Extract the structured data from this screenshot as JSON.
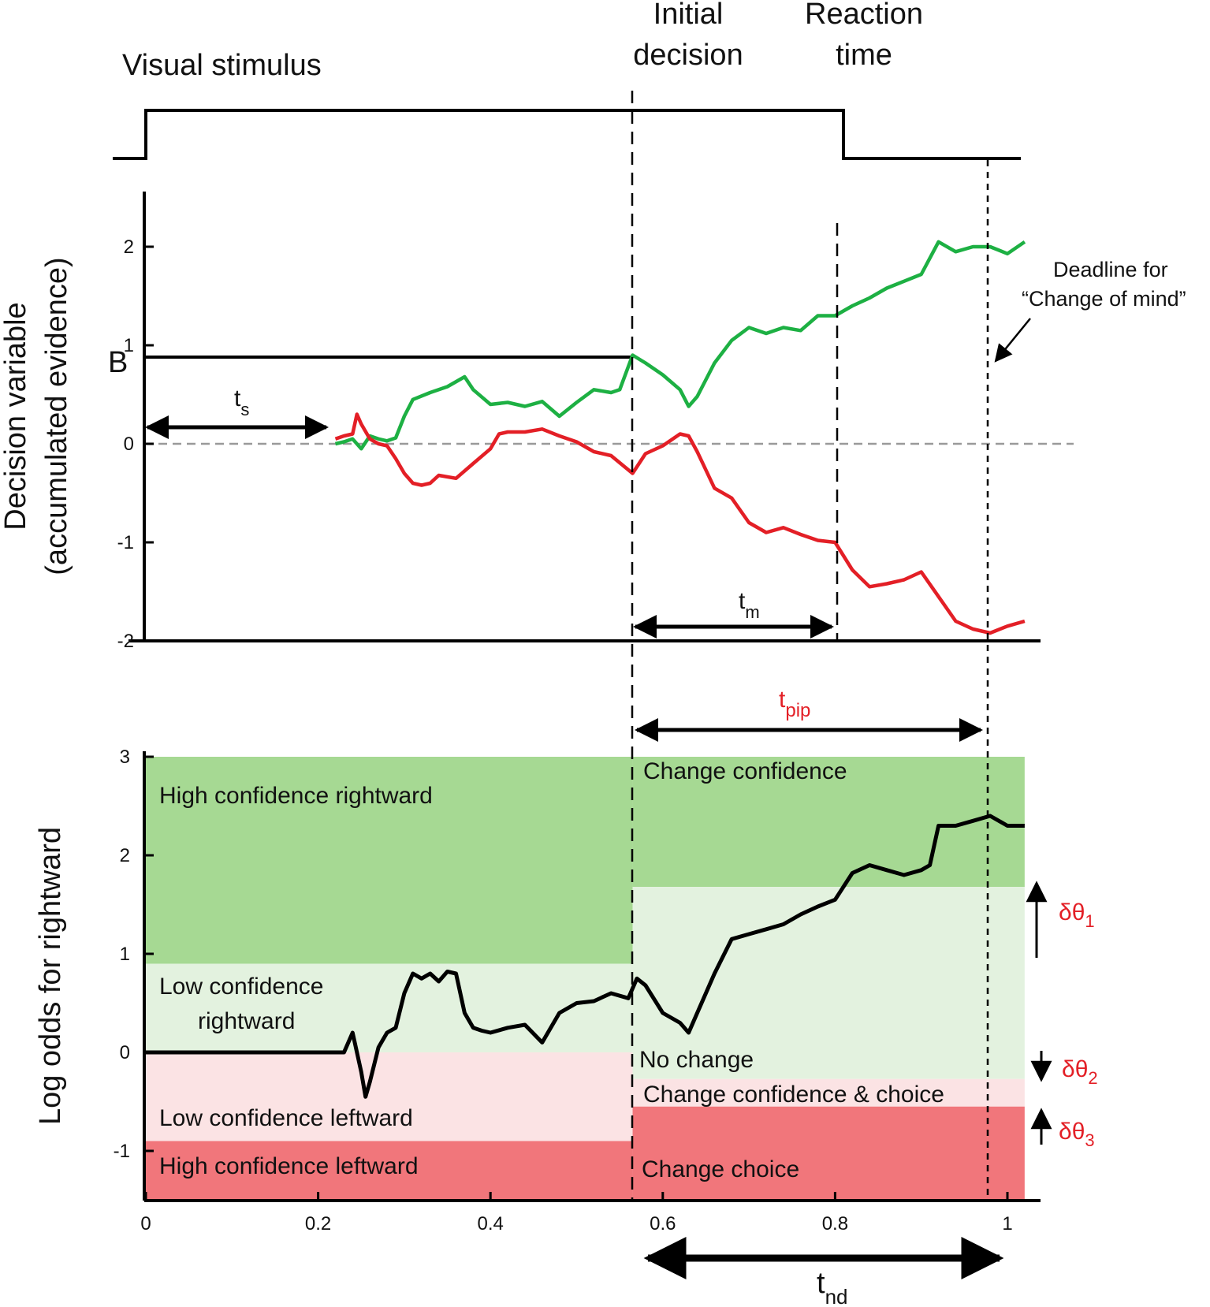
{
  "header": {
    "stimulus_label": "Visual stimulus",
    "initial_decision_line1": "Initial",
    "initial_decision_line2": "decision",
    "reaction_time_line1": "Reaction",
    "reaction_time_line2": "time"
  },
  "annotations": {
    "bound_label": "B",
    "ts_main": "t",
    "ts_sub": "s",
    "tm_main": "t",
    "tm_sub": "m",
    "tpip_main": "t",
    "tpip_sub": "pip",
    "tnd_main": "t",
    "tnd_sub": "nd",
    "deadline_line1": "Deadline for",
    "deadline_line2": "“Change of mind”",
    "dtheta1_main": "δθ",
    "dtheta1_sub": "1",
    "dtheta2_main": "δθ",
    "dtheta2_sub": "2",
    "dtheta3_main": "δθ",
    "dtheta3_sub": "3"
  },
  "regions": {
    "high_right": "High confidence rightward",
    "low_right_line1": "Low confidence",
    "low_right_line2": "rightward",
    "low_left": "Low confidence leftward",
    "high_left": "High confidence leftward",
    "change_confidence": "Change confidence",
    "no_change": "No change",
    "change_conf_choice": "Change confidence & choice",
    "change_choice": "Change choice"
  },
  "colors": {
    "green_dark": "#a6d993",
    "green_light": "#e3f2df",
    "red_light": "#fbe3e4",
    "red_dark": "#f1767b",
    "trace_green": "#1db043",
    "trace_red": "#e31f26",
    "trace_black": "#000000",
    "zero_line": "#9a9a9a",
    "annotation_red": "#e31f26"
  },
  "chart_data": [
    {
      "type": "line",
      "ylabel_line1": "Decision variable",
      "ylabel_line2": "(accumulated evidence)",
      "ylim": [
        -2,
        2.5
      ],
      "yticks": [
        "-2",
        "-1",
        "0",
        "1",
        "2"
      ],
      "bound": 0.87,
      "events": {
        "initial_decision": 0.565,
        "reaction_time": 0.8,
        "deadline": 0.98
      },
      "series": [
        {
          "x": [
            0.22,
            0.23,
            0.24,
            0.25,
            0.26,
            0.27,
            0.28,
            0.29,
            0.3,
            0.31,
            0.33,
            0.35,
            0.37,
            0.38,
            0.4,
            0.42,
            0.44,
            0.46,
            0.48,
            0.5,
            0.52,
            0.54,
            0.55,
            0.565,
            0.58,
            0.6,
            0.62,
            0.63,
            0.64,
            0.66,
            0.68,
            0.7,
            0.72,
            0.74,
            0.76,
            0.78,
            0.8,
            0.82,
            0.84,
            0.86,
            0.88,
            0.9,
            0.92,
            0.94,
            0.96,
            0.98,
            1.0,
            1.02
          ],
          "values": [
            0.0,
            0.02,
            0.05,
            -0.05,
            0.08,
            0.05,
            0.03,
            0.06,
            0.28,
            0.45,
            0.52,
            0.58,
            0.68,
            0.55,
            0.4,
            0.42,
            0.38,
            0.43,
            0.28,
            0.42,
            0.55,
            0.52,
            0.55,
            0.9,
            0.82,
            0.7,
            0.55,
            0.38,
            0.48,
            0.82,
            1.05,
            1.18,
            1.12,
            1.18,
            1.15,
            1.3,
            1.3,
            1.4,
            1.48,
            1.58,
            1.65,
            1.72,
            2.05,
            1.95,
            2.0,
            2.0,
            1.93,
            2.05
          ]
        },
        {
          "x": [
            0.22,
            0.23,
            0.24,
            0.245,
            0.25,
            0.26,
            0.27,
            0.28,
            0.29,
            0.3,
            0.31,
            0.32,
            0.33,
            0.34,
            0.36,
            0.38,
            0.4,
            0.41,
            0.42,
            0.44,
            0.46,
            0.48,
            0.5,
            0.52,
            0.54,
            0.565,
            0.58,
            0.6,
            0.62,
            0.63,
            0.64,
            0.66,
            0.68,
            0.7,
            0.72,
            0.74,
            0.76,
            0.78,
            0.8,
            0.82,
            0.84,
            0.86,
            0.88,
            0.9,
            0.92,
            0.94,
            0.96,
            0.98,
            1.0,
            1.02
          ],
          "values": [
            0.05,
            0.08,
            0.1,
            0.3,
            0.2,
            0.05,
            0.0,
            -0.02,
            -0.15,
            -0.3,
            -0.4,
            -0.42,
            -0.4,
            -0.32,
            -0.35,
            -0.2,
            -0.05,
            0.1,
            0.12,
            0.12,
            0.15,
            0.08,
            0.02,
            -0.08,
            -0.12,
            -0.3,
            -0.1,
            -0.02,
            0.1,
            0.08,
            -0.08,
            -0.45,
            -0.55,
            -0.8,
            -0.9,
            -0.85,
            -0.92,
            -0.98,
            -1.0,
            -1.28,
            -1.45,
            -1.42,
            -1.38,
            -1.3,
            -1.55,
            -1.8,
            -1.88,
            -1.92,
            -1.85,
            -1.8
          ]
        }
      ]
    },
    {
      "type": "line",
      "ylabel": "Log odds for rightward",
      "xlim": [
        0,
        1.04
      ],
      "ylim": [
        -1.5,
        3
      ],
      "xticks": [
        "0",
        "0.2",
        "0.4",
        "0.6",
        "0.8",
        "1"
      ],
      "yticks": [
        "-1",
        "0",
        "1",
        "2",
        "3"
      ],
      "thresholds_before_decision": {
        "high_right": 0.9,
        "low_left": -0.9
      },
      "thresholds_after_decision": {
        "change_confidence": 1.68,
        "change_confidence_and_choice": -0.27,
        "change_choice": -0.55
      },
      "series": [
        {
          "x": [
            0.0,
            0.1,
            0.2,
            0.23,
            0.24,
            0.25,
            0.255,
            0.26,
            0.27,
            0.28,
            0.29,
            0.3,
            0.31,
            0.32,
            0.33,
            0.34,
            0.35,
            0.36,
            0.37,
            0.38,
            0.39,
            0.4,
            0.42,
            0.44,
            0.46,
            0.48,
            0.5,
            0.52,
            0.54,
            0.56,
            0.57,
            0.58,
            0.6,
            0.62,
            0.63,
            0.64,
            0.66,
            0.68,
            0.7,
            0.72,
            0.74,
            0.76,
            0.78,
            0.8,
            0.82,
            0.84,
            0.86,
            0.88,
            0.9,
            0.91,
            0.92,
            0.94,
            0.96,
            0.98,
            1.0,
            1.02
          ],
          "values": [
            0.0,
            0.0,
            0.0,
            0.0,
            0.2,
            -0.2,
            -0.45,
            -0.3,
            0.05,
            0.2,
            0.25,
            0.6,
            0.8,
            0.75,
            0.8,
            0.72,
            0.82,
            0.8,
            0.4,
            0.25,
            0.22,
            0.2,
            0.25,
            0.28,
            0.1,
            0.4,
            0.5,
            0.52,
            0.6,
            0.55,
            0.75,
            0.68,
            0.4,
            0.3,
            0.2,
            0.4,
            0.8,
            1.15,
            1.2,
            1.25,
            1.3,
            1.4,
            1.48,
            1.55,
            1.82,
            1.9,
            1.85,
            1.8,
            1.85,
            1.9,
            2.3,
            2.3,
            2.35,
            2.4,
            2.3,
            2.3
          ]
        }
      ]
    }
  ]
}
